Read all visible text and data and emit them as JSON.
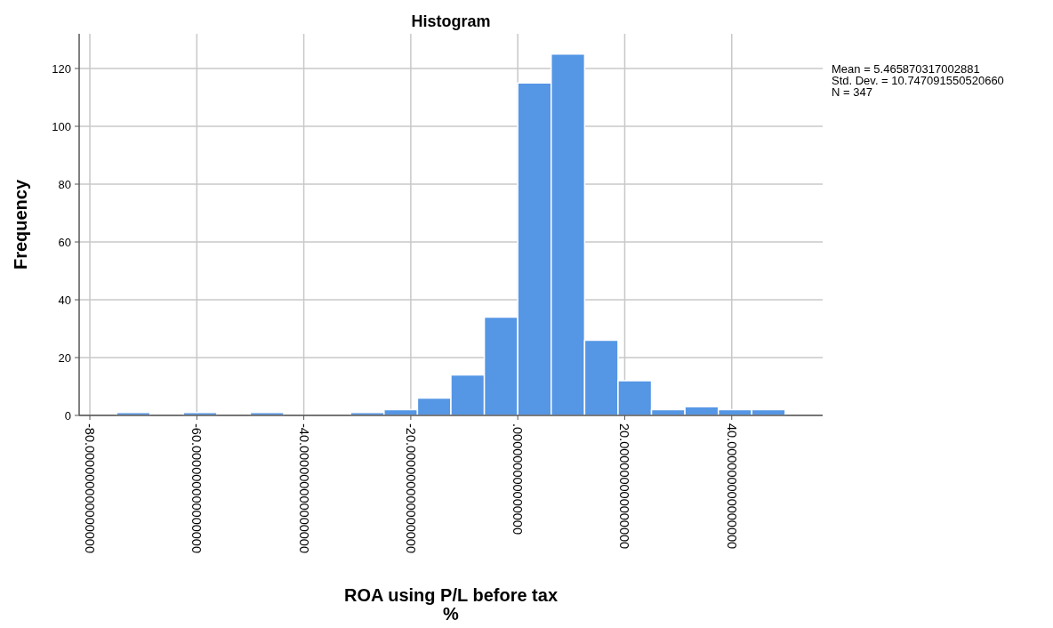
{
  "chart_data": {
    "type": "histogram",
    "title": "Histogram",
    "xlabel": "ROA using P/L before tax\n%",
    "ylabel": "Frequency",
    "bins": [
      -75,
      -68.75,
      -62.5,
      -56.25,
      -50,
      -43.75,
      -37.5,
      -31.25,
      -25,
      -18.75,
      -12.5,
      -6.25,
      0,
      6.25,
      12.5,
      18.75,
      25,
      31.25,
      37.5,
      43.75,
      50
    ],
    "values": [
      1,
      0,
      1,
      0,
      1,
      0,
      0,
      1,
      2,
      6,
      14,
      34,
      115,
      125,
      26,
      12,
      2,
      3,
      2,
      2
    ],
    "color": "#5596e5",
    "xlim": [
      -82,
      57
    ],
    "xticks": [
      {
        "value": -80,
        "label": "-80.000000000000000"
      },
      {
        "value": -60,
        "label": "-60.000000000000000"
      },
      {
        "value": -40,
        "label": "-40.000000000000000"
      },
      {
        "value": -20,
        "label": "-20.000000000000000"
      },
      {
        "value": 0,
        "label": ".000000000000000"
      },
      {
        "value": 20,
        "label": "20.000000000000000"
      },
      {
        "value": 40,
        "label": "40.000000000000000"
      }
    ],
    "ylim": [
      0,
      132
    ],
    "yticks": [
      0,
      20,
      40,
      60,
      80,
      100,
      120
    ],
    "grid": true,
    "annotations": [
      "Mean = 5.465870317002881\nStd. Dev. = 10.747091550520660\nN = 347"
    ]
  }
}
